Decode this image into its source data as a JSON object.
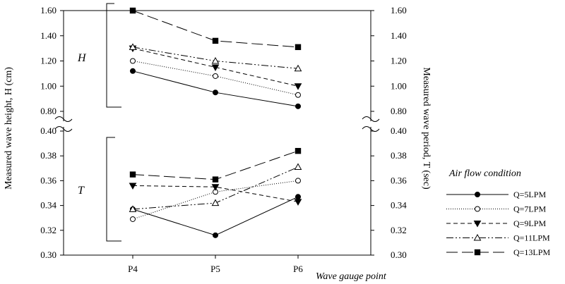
{
  "chart_data": {
    "type": "line",
    "categories": [
      "P4",
      "P5",
      "P6"
    ],
    "xlabel": "Wave gauge point",
    "ylabel_left": "Measured wave height, H (cm)",
    "ylabel_right": "Measured wave period, T (sec)",
    "upper_panel": {
      "label": "H",
      "ylim": [
        0.8,
        1.6
      ],
      "ticks": [
        "0.80",
        "1.00",
        "1.20",
        "1.40",
        "1.60"
      ]
    },
    "lower_panel": {
      "label": "T",
      "ylim": [
        0.3,
        0.4
      ],
      "ticks": [
        "0.30",
        "0.32",
        "0.34",
        "0.36",
        "0.38",
        "0.40"
      ]
    },
    "legend": {
      "title": "Air flow condition",
      "placement": "right"
    },
    "series": [
      {
        "name": "Q=5LPM",
        "marker": "filled-circle",
        "dash": "",
        "H": [
          1.12,
          0.95,
          0.84
        ],
        "T": [
          0.337,
          0.316,
          0.347
        ]
      },
      {
        "name": "Q=7LPM",
        "marker": "open-circle",
        "dash": "1 2",
        "H": [
          1.2,
          1.08,
          0.93
        ],
        "T": [
          0.329,
          0.351,
          0.36
        ]
      },
      {
        "name": "Q=9LPM",
        "marker": "filled-triangle-down",
        "dash": "6 4",
        "H": [
          1.3,
          1.15,
          1.0
        ],
        "T": [
          0.356,
          0.355,
          0.343
        ]
      },
      {
        "name": "Q=11LPM",
        "marker": "open-triangle-up",
        "dash": "10 3 2 3 2 3",
        "H": [
          1.31,
          1.2,
          1.14
        ],
        "T": [
          0.337,
          0.342,
          0.371
        ]
      },
      {
        "name": "Q=13LPM",
        "marker": "filled-square",
        "dash": "16 6",
        "H": [
          1.6,
          1.36,
          1.31
        ],
        "T": [
          0.365,
          0.361,
          0.384
        ]
      }
    ]
  }
}
